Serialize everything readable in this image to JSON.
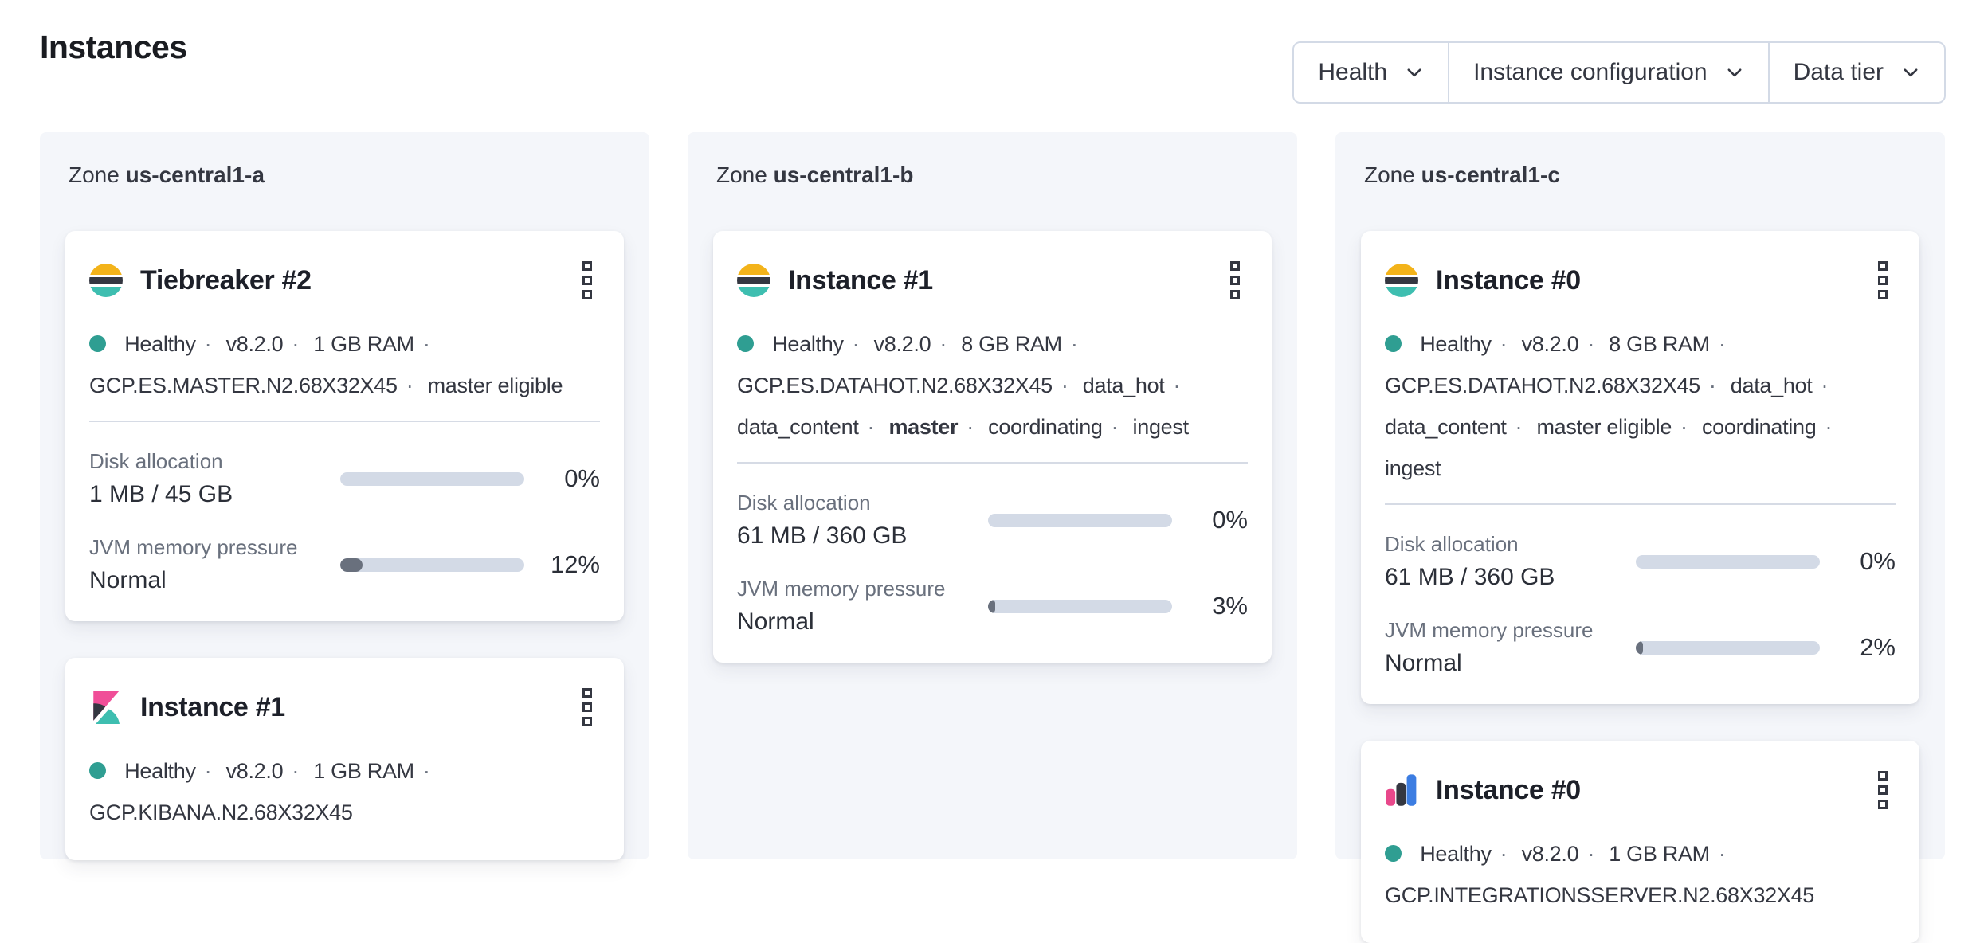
{
  "page": {
    "title": "Instances"
  },
  "filters": [
    {
      "label": "Health",
      "icon": "chevron-down-icon"
    },
    {
      "label": "Instance configuration",
      "icon": "chevron-down-icon"
    },
    {
      "label": "Data tier",
      "icon": "chevron-down-icon"
    }
  ],
  "separator": "·",
  "icons": {
    "card_menu": "vertical-dots-menu-icon",
    "health": "health-dot-icon"
  },
  "colors": {
    "healthy_dot": "#2f9e92",
    "bar_track": "#d3dae6",
    "bar_fill": "#69707d",
    "panel_bg": "#f4f6fa",
    "border": "#d3dae6",
    "text": "#343741",
    "text_subdued": "#69707d",
    "elastic_yellow": "#f3b31a",
    "elastic_dark": "#343741",
    "elastic_teal": "#3ebeb0",
    "kibana_pink": "#f04e98",
    "integrations_pink": "#e8488b",
    "integrations_blue": "#3c7de2"
  },
  "zones": [
    {
      "label": "Zone",
      "name": "us-central1-a",
      "cards": [
        {
          "icon": "elasticsearch-icon",
          "title": "Tiebreaker #2",
          "status": [
            {
              "text": "Healthy"
            },
            {
              "text": "v8.2.0"
            },
            {
              "text": "1 GB RAM"
            },
            {
              "text": "GCP.ES.MASTER.N2.68X32X45"
            },
            {
              "text": "master eligible"
            }
          ],
          "metrics": [
            {
              "label": "Disk allocation",
              "value": "1 MB / 45 GB",
              "percent": "0%",
              "percent_value": 0
            },
            {
              "label": "JVM memory pressure",
              "value": "Normal",
              "percent": "12%",
              "percent_value": 12
            }
          ]
        },
        {
          "icon": "kibana-icon",
          "title": "Instance #1",
          "status": [
            {
              "text": "Healthy"
            },
            {
              "text": "v8.2.0"
            },
            {
              "text": "1 GB RAM"
            },
            {
              "text": "GCP.KIBANA.N2.68X32X45"
            }
          ],
          "metrics": []
        }
      ]
    },
    {
      "label": "Zone",
      "name": "us-central1-b",
      "cards": [
        {
          "icon": "elasticsearch-icon",
          "title": "Instance #1",
          "status": [
            {
              "text": "Healthy"
            },
            {
              "text": "v8.2.0"
            },
            {
              "text": "8 GB RAM"
            },
            {
              "text": "GCP.ES.DATAHOT.N2.68X32X45"
            },
            {
              "text": "data_hot"
            },
            {
              "text": "data_content"
            },
            {
              "text": "master",
              "bold": true
            },
            {
              "text": "coordinating"
            },
            {
              "text": "ingest"
            }
          ],
          "metrics": [
            {
              "label": "Disk allocation",
              "value": "61 MB / 360 GB",
              "percent": "0%",
              "percent_value": 0
            },
            {
              "label": "JVM memory pressure",
              "value": "Normal",
              "percent": "3%",
              "percent_value": 3
            }
          ]
        }
      ]
    },
    {
      "label": "Zone",
      "name": "us-central1-c",
      "cards": [
        {
          "icon": "elasticsearch-icon",
          "title": "Instance #0",
          "status": [
            {
              "text": "Healthy"
            },
            {
              "text": "v8.2.0"
            },
            {
              "text": "8 GB RAM"
            },
            {
              "text": "GCP.ES.DATAHOT.N2.68X32X45"
            },
            {
              "text": "data_hot"
            },
            {
              "text": "data_content"
            },
            {
              "text": "master eligible"
            },
            {
              "text": "coordinating"
            },
            {
              "text": "ingest"
            }
          ],
          "metrics": [
            {
              "label": "Disk allocation",
              "value": "61 MB / 360 GB",
              "percent": "0%",
              "percent_value": 0
            },
            {
              "label": "JVM memory pressure",
              "value": "Normal",
              "percent": "2%",
              "percent_value": 2
            }
          ]
        },
        {
          "icon": "integrations-server-icon",
          "title": "Instance #0",
          "status": [
            {
              "text": "Healthy"
            },
            {
              "text": "v8.2.0"
            },
            {
              "text": "1 GB RAM"
            },
            {
              "text": "GCP.INTEGRATIONSSERVER.N2.68X32X45"
            }
          ],
          "metrics": []
        }
      ]
    }
  ]
}
